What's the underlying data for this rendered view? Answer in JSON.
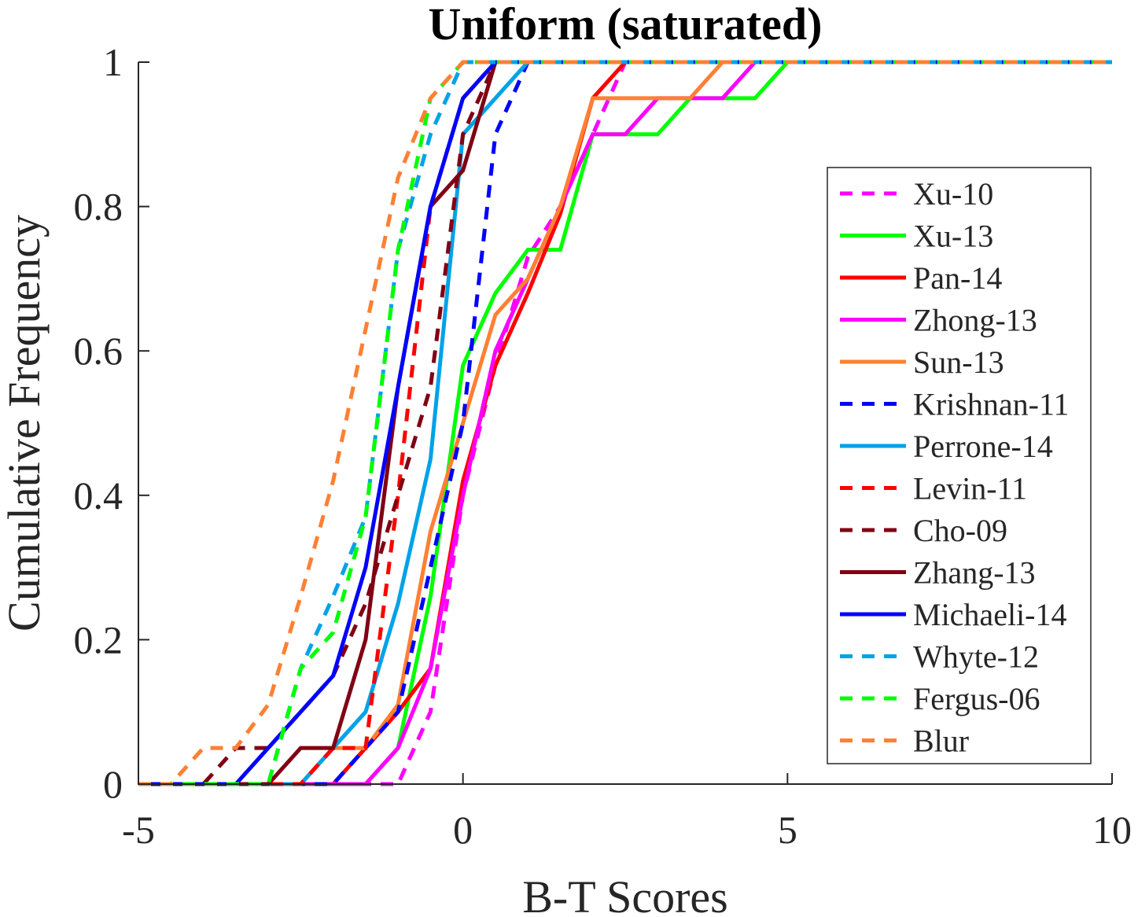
{
  "chart_data": {
    "type": "line",
    "title": "Uniform (saturated)",
    "xlabel": "B-T Scores",
    "ylabel": "Cumulative Frequency",
    "xlim": [
      -5,
      10
    ],
    "ylim": [
      0,
      1
    ],
    "xticks": [
      "-5",
      "0",
      "5",
      "10"
    ],
    "yticks": [
      "0",
      "0.2",
      "0.4",
      "0.6",
      "0.8",
      "1"
    ],
    "grid": false,
    "legend_position": "right",
    "series": [
      {
        "name": "Xu-10",
        "color": "#ff00ff",
        "dash": true,
        "x": [
          -1,
          -0.5,
          0,
          0.5,
          1,
          1.5,
          2,
          2.5
        ],
        "y": [
          0,
          0.1,
          0.4,
          0.58,
          0.73,
          0.8,
          0.9,
          1
        ]
      },
      {
        "name": "Xu-13",
        "color": "#00ff00",
        "dash": false,
        "x": [
          -1.5,
          -1,
          -0.5,
          0,
          0.5,
          1,
          1.5,
          2,
          3,
          3.5,
          4.5,
          5
        ],
        "y": [
          0,
          0.05,
          0.26,
          0.58,
          0.68,
          0.74,
          0.74,
          0.9,
          0.9,
          0.95,
          0.95,
          1
        ]
      },
      {
        "name": "Pan-14",
        "color": "#ff0000",
        "dash": false,
        "x": [
          -2,
          -1.5,
          -1,
          -0.5,
          0,
          0.5,
          1,
          1.5,
          2,
          2.5
        ],
        "y": [
          0,
          0.05,
          0.1,
          0.16,
          0.42,
          0.58,
          0.68,
          0.79,
          0.95,
          1
        ]
      },
      {
        "name": "Zhong-13",
        "color": "#ff00ff",
        "dash": false,
        "x": [
          -1.5,
          -1,
          -0.5,
          0,
          0.5,
          1,
          1.5,
          2,
          2.5,
          3,
          4,
          4.5
        ],
        "y": [
          0,
          0.05,
          0.16,
          0.4,
          0.6,
          0.7,
          0.8,
          0.9,
          0.9,
          0.95,
          0.95,
          1
        ]
      },
      {
        "name": "Sun-13",
        "color": "#ff8033",
        "dash": false,
        "x": [
          -2.5,
          -2,
          -1.5,
          -1,
          -0.5,
          0,
          0.5,
          1,
          1.5,
          2,
          3.5,
          4
        ],
        "y": [
          0,
          0.05,
          0.05,
          0.11,
          0.35,
          0.5,
          0.65,
          0.7,
          0.8,
          0.95,
          0.95,
          1
        ]
      },
      {
        "name": "Krishnan-11",
        "color": "#0000ff",
        "dash": true,
        "x": [
          -2,
          -1.5,
          -1,
          -0.5,
          0,
          0.5,
          1
        ],
        "y": [
          0,
          0.05,
          0.1,
          0.3,
          0.5,
          0.9,
          1
        ]
      },
      {
        "name": "Perrone-14",
        "color": "#00a2e8",
        "dash": false,
        "x": [
          -2.5,
          -2,
          -1.5,
          -1,
          -0.5,
          0,
          0.5,
          1
        ],
        "y": [
          0,
          0.05,
          0.1,
          0.25,
          0.45,
          0.9,
          0.95,
          1
        ]
      },
      {
        "name": "Levin-11",
        "color": "#ff0000",
        "dash": true,
        "x": [
          -2.5,
          -2,
          -1.5,
          -1,
          -0.5,
          0,
          0.5
        ],
        "y": [
          0,
          0.05,
          0.05,
          0.4,
          0.8,
          0.95,
          1
        ]
      },
      {
        "name": "Cho-09",
        "color": "#800014",
        "dash": true,
        "x": [
          -4,
          -3.5,
          -3,
          -2.5,
          -2,
          -1.5,
          -1,
          -0.5,
          0,
          0.5
        ],
        "y": [
          0,
          0.05,
          0.05,
          0.1,
          0.15,
          0.25,
          0.4,
          0.55,
          0.9,
          1
        ]
      },
      {
        "name": "Zhang-13",
        "color": "#800014",
        "dash": false,
        "x": [
          -3,
          -2.5,
          -2,
          -1.5,
          -1,
          -0.5,
          0,
          0.5
        ],
        "y": [
          0,
          0.05,
          0.05,
          0.2,
          0.55,
          0.8,
          0.85,
          1
        ]
      },
      {
        "name": "Michaeli-14",
        "color": "#0000ff",
        "dash": false,
        "x": [
          -3.5,
          -3,
          -2.5,
          -2,
          -1.5,
          -1,
          -0.5,
          0,
          0.5
        ],
        "y": [
          0,
          0.05,
          0.1,
          0.15,
          0.3,
          0.55,
          0.8,
          0.95,
          1
        ]
      },
      {
        "name": "Whyte-12",
        "color": "#00a2e8",
        "dash": true,
        "x": [
          -3,
          -2.5,
          -2,
          -1.5,
          -1,
          -0.5,
          0
        ],
        "y": [
          0,
          0.16,
          0.26,
          0.37,
          0.74,
          0.9,
          1
        ]
      },
      {
        "name": "Fergus-06",
        "color": "#00ff00",
        "dash": true,
        "x": [
          -3,
          -2.5,
          -2,
          -1.5,
          -1,
          -0.5,
          0
        ],
        "y": [
          0,
          0.16,
          0.21,
          0.37,
          0.74,
          0.95,
          1
        ]
      },
      {
        "name": "Blur",
        "color": "#ff8033",
        "dash": true,
        "x": [
          -4.5,
          -4,
          -3.5,
          -3,
          -2.5,
          -2,
          -1.5,
          -1,
          -0.5,
          0
        ],
        "y": [
          0,
          0.05,
          0.05,
          0.11,
          0.26,
          0.42,
          0.63,
          0.84,
          0.95,
          1
        ]
      }
    ]
  }
}
